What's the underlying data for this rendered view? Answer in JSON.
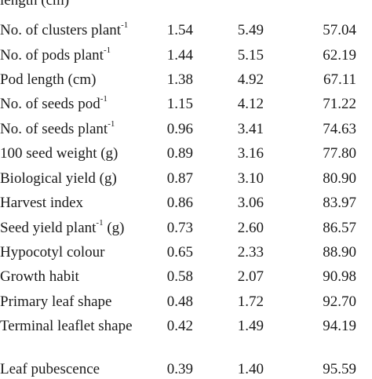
{
  "table": {
    "rows": [
      {
        "trait": "length (cm)",
        "v1": "",
        "v2": "",
        "v3": ""
      },
      {
        "trait": "No. of clusters plant",
        "sup": "-1",
        "v1": "1.54",
        "v2": "5.49",
        "v3": "57.04"
      },
      {
        "trait": "No. of pods plant",
        "sup": "-1",
        "v1": "1.44",
        "v2": "5.15",
        "v3": "62.19"
      },
      {
        "trait": "Pod length (cm)",
        "v1": "1.38",
        "v2": "4.92",
        "v3": "67.11"
      },
      {
        "trait": "No. of seeds pod",
        "sup": "-1",
        "v1": "1.15",
        "v2": "4.12",
        "v3": "71.22"
      },
      {
        "trait": "No. of seeds plant",
        "sup": "-1",
        "v1": "0.96",
        "v2": "3.41",
        "v3": "74.63"
      },
      {
        "trait": "100 seed weight (g)",
        "v1": "0.89",
        "v2": "3.16",
        "v3": "77.80"
      },
      {
        "trait": "Biological yield (g)",
        "v1": "0.87",
        "v2": "3.10",
        "v3": "80.90"
      },
      {
        "trait": "Harvest index",
        "v1": "0.86",
        "v2": "3.06",
        "v3": "83.97"
      },
      {
        "trait": "Seed yield plant",
        "sup": "-1",
        "suffix": " (g)",
        "v1": "0.73",
        "v2": "2.60",
        "v3": "86.57"
      },
      {
        "trait": "Hypocotyl colour",
        "v1": "0.65",
        "v2": "2.33",
        "v3": "88.90"
      },
      {
        "trait": "Growth habit",
        "v1": "0.58",
        "v2": "2.07",
        "v3": "90.98"
      },
      {
        "trait": "Primary leaf shape",
        "v1": "0.48",
        "v2": "1.72",
        "v3": "92.70"
      },
      {
        "trait": "Terminal leaflet shape",
        "v1": "0.42",
        "v2": "1.49",
        "v3": "94.19"
      },
      {
        "trait": "Leaf pubescence",
        "v1": "0.39",
        "v2": "1.40",
        "v3": "95.59"
      }
    ]
  }
}
